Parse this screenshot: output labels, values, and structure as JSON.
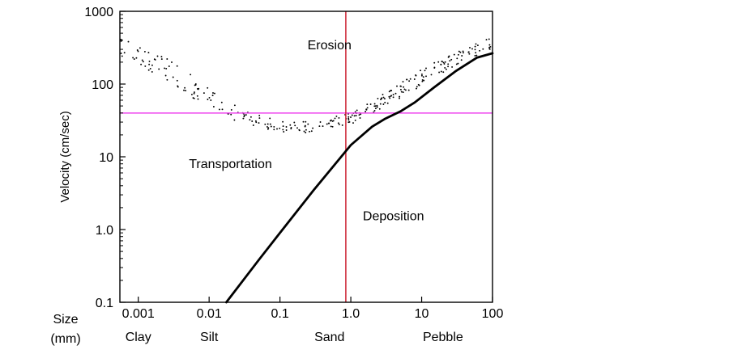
{
  "chart_data": {
    "type": "line",
    "title": "",
    "xlabel": "Size (mm)",
    "xlabel_lines": [
      "Size",
      "(mm)"
    ],
    "ylabel": "Velocity (cm/sec)",
    "xscale": "log",
    "yscale": "log",
    "xlim": [
      0.00055,
      100
    ],
    "ylim": [
      0.1,
      1000
    ],
    "x_ticks": [
      {
        "value": 0.001,
        "label": "0.001"
      },
      {
        "value": 0.01,
        "label": "0.01"
      },
      {
        "value": 0.1,
        "label": "0.1"
      },
      {
        "value": 1,
        "label": "1.0"
      },
      {
        "value": 10,
        "label": "10"
      },
      {
        "value": 100,
        "label": "100"
      }
    ],
    "y_ticks": [
      {
        "value": 0.1,
        "label": "0.1"
      },
      {
        "value": 1,
        "label": "1.0"
      },
      {
        "value": 10,
        "label": "10"
      },
      {
        "value": 100,
        "label": "100"
      },
      {
        "value": 1000,
        "label": "1000"
      }
    ],
    "size_classes": [
      {
        "label": "Clay",
        "x": 0.001
      },
      {
        "label": "Silt",
        "x": 0.01
      },
      {
        "label": "Sand",
        "x": 0.5
      },
      {
        "label": "Pebble",
        "x": 20
      }
    ],
    "regions": [
      {
        "label": "Erosion",
        "x": 0.5,
        "y": 300
      },
      {
        "label": "Transportation",
        "x": 0.02,
        "y": 7
      },
      {
        "label": "Deposition",
        "x": 4,
        "y": 1.35
      }
    ],
    "series": [
      {
        "style": "solid",
        "color": "#000000",
        "x": [
          0.0175,
          0.05,
          0.1,
          0.3,
          1,
          2,
          3,
          5,
          8,
          15,
          30,
          60,
          100
        ],
        "y": [
          0.1,
          0.38,
          0.9,
          3.5,
          14.5,
          26,
          33,
          42,
          56,
          90,
          150,
          230,
          265
        ]
      },
      {
        "style": "dotted-band-upper",
        "color": "#000000",
        "x": [
          0.00055,
          0.001,
          0.003,
          0.01,
          0.03,
          0.1,
          0.3,
          1,
          3,
          10,
          30,
          100
        ],
        "y": [
          430,
          380,
          210,
          90,
          45,
          32,
          32,
          40,
          75,
          160,
          280,
          440
        ]
      },
      {
        "style": "dotted-band-lower",
        "color": "#000000",
        "x": [
          0.00055,
          0.001,
          0.003,
          0.01,
          0.03,
          0.1,
          0.3,
          1,
          3,
          10,
          30,
          100
        ],
        "y": [
          250,
          190,
          100,
          45,
          28,
          22,
          21,
          28,
          48,
          95,
          180,
          310
        ]
      }
    ],
    "reference_lines": [
      {
        "orientation": "horizontal",
        "value": 40,
        "color": "#ee44ee"
      },
      {
        "orientation": "vertical",
        "value": 0.85,
        "color": "#cc2233"
      }
    ],
    "grid": false,
    "legend": "none"
  }
}
